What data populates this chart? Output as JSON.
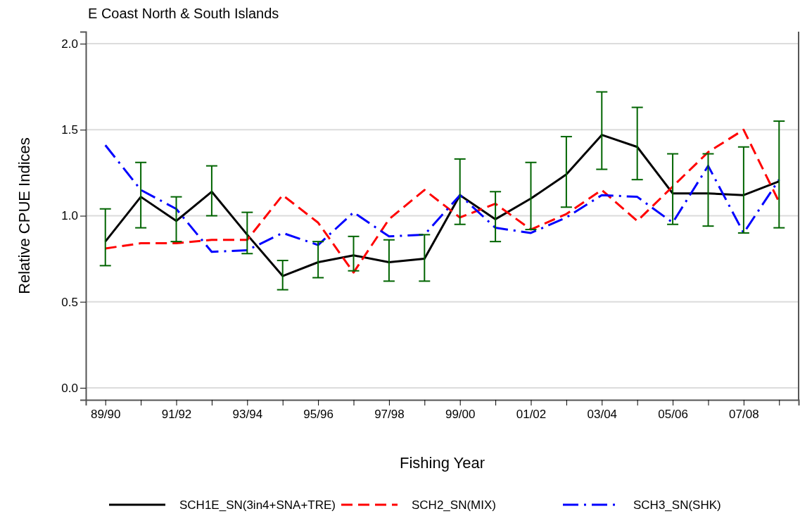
{
  "chart_data": {
    "type": "line",
    "title": "E Coast North & South Islands",
    "xlabel": "Fishing Year",
    "ylabel": "Relative CPUE Indices",
    "categories": [
      "89/90",
      null,
      "91/92",
      null,
      "93/94",
      null,
      "95/96",
      null,
      "97/98",
      null,
      "99/00",
      null,
      "01/02",
      null,
      "03/04",
      null,
      "05/06",
      null,
      "07/08",
      null
    ],
    "series": [
      {
        "name": "SCH1E_SN(3in4+SNA+TRE)",
        "color": "#000000",
        "line_style": "solid",
        "values": [
          0.85,
          1.11,
          0.97,
          1.14,
          0.89,
          0.65,
          0.73,
          0.77,
          0.73,
          0.75,
          1.12,
          0.98,
          1.1,
          1.24,
          1.47,
          1.4,
          1.13,
          1.13,
          1.12,
          1.2
        ],
        "errors": [
          [
            0.71,
            1.04
          ],
          [
            0.93,
            1.31
          ],
          [
            0.85,
            1.11
          ],
          [
            1.0,
            1.29
          ],
          [
            0.78,
            1.02
          ],
          [
            0.57,
            0.74
          ],
          [
            0.64,
            0.85
          ],
          [
            0.68,
            0.88
          ],
          [
            0.62,
            0.86
          ],
          [
            0.62,
            0.89
          ],
          [
            0.95,
            1.33
          ],
          [
            0.85,
            1.14
          ],
          [
            0.92,
            1.31
          ],
          [
            1.05,
            1.46
          ],
          [
            1.27,
            1.72
          ],
          [
            1.21,
            1.63
          ],
          [
            0.95,
            1.36
          ],
          [
            0.94,
            1.36
          ],
          [
            0.9,
            1.4
          ],
          [
            0.93,
            1.55
          ]
        ]
      },
      {
        "name": "SCH2_SN(MIX)",
        "color": "#ff0000",
        "line_style": "dashed",
        "values": [
          0.81,
          0.84,
          0.84,
          0.86,
          0.86,
          1.12,
          0.96,
          0.67,
          0.98,
          1.15,
          0.99,
          1.07,
          0.92,
          1.01,
          1.15,
          0.97,
          1.17,
          1.37,
          1.5,
          1.08
        ]
      },
      {
        "name": "SCH3_SN(SHK)",
        "color": "#0000ff",
        "line_style": "dashdot",
        "values": [
          1.41,
          1.15,
          1.04,
          0.79,
          0.8,
          0.9,
          0.83,
          1.02,
          0.88,
          0.89,
          1.12,
          0.93,
          0.9,
          0.99,
          1.12,
          1.11,
          0.96,
          1.29,
          0.9,
          1.21
        ]
      }
    ],
    "ylim": [
      -0.07,
      2.07
    ],
    "yticks": [
      {
        "value": 0,
        "label": "0.0"
      },
      {
        "value": 0.5,
        "label": "0.5"
      },
      {
        "value": 1,
        "label": "1.0"
      },
      {
        "value": 1.5,
        "label": "1.5"
      },
      {
        "value": 2,
        "label": "2.0"
      }
    ],
    "grid": "y",
    "legend": "bottom",
    "marker": "none"
  }
}
